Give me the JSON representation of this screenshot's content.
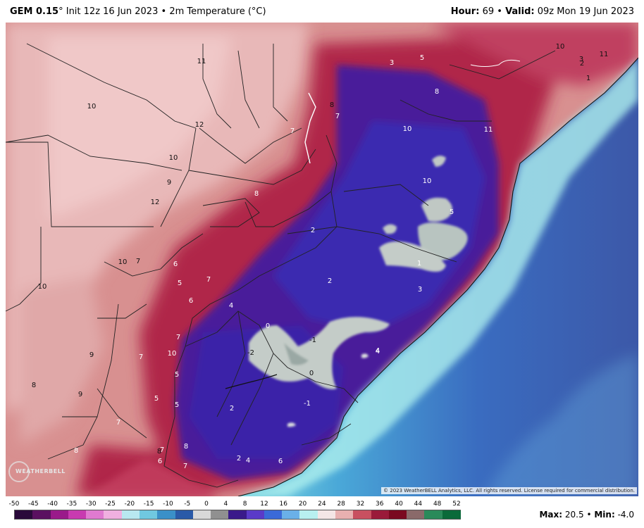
{
  "header": {
    "model": "GEM 0.15",
    "degree": "°",
    "init": "Init 12z 16 Jun 2023",
    "separator": "•",
    "field": "2m Temperature (°C)",
    "hour_label": "Hour:",
    "hour_value": "69",
    "valid_label": "Valid:",
    "valid_value": "09z Mon 19 Jun 2023"
  },
  "map": {
    "labels": [
      {
        "t": "11"
      },
      {
        "t": "10"
      },
      {
        "t": "12"
      },
      {
        "t": "10"
      },
      {
        "t": "9"
      },
      {
        "t": "12"
      },
      {
        "t": "10"
      },
      {
        "t": "9"
      },
      {
        "t": "10"
      },
      {
        "t": "7"
      },
      {
        "t": "8"
      },
      {
        "t": "8"
      },
      {
        "t": "7"
      },
      {
        "t": "8"
      },
      {
        "t": "7"
      },
      {
        "t": "3"
      },
      {
        "t": "5"
      },
      {
        "t": "8"
      },
      {
        "t": "10"
      },
      {
        "t": "11"
      },
      {
        "t": "10"
      },
      {
        "t": "11"
      },
      {
        "t": "2"
      },
      {
        "t": "3"
      },
      {
        "t": "1"
      },
      {
        "t": "10"
      },
      {
        "t": "5"
      },
      {
        "t": "2"
      },
      {
        "t": "1"
      },
      {
        "t": "3"
      },
      {
        "t": "2"
      },
      {
        "t": "6"
      },
      {
        "t": "5"
      },
      {
        "t": "7"
      },
      {
        "t": "6"
      },
      {
        "t": "4"
      },
      {
        "t": "0"
      },
      {
        "t": "-1"
      },
      {
        "t": "-2"
      },
      {
        "t": "4"
      },
      {
        "t": "0"
      },
      {
        "t": "7"
      },
      {
        "t": "10"
      },
      {
        "t": "7"
      },
      {
        "t": "5"
      },
      {
        "t": "5"
      },
      {
        "t": "5"
      },
      {
        "t": "2"
      },
      {
        "t": "-1"
      },
      {
        "t": "8"
      },
      {
        "t": "9"
      },
      {
        "t": "7"
      },
      {
        "t": "7"
      },
      {
        "t": "8"
      },
      {
        "t": "6"
      },
      {
        "t": "7"
      },
      {
        "t": "2"
      },
      {
        "t": "4"
      },
      {
        "t": "6"
      },
      {
        "t": "8"
      },
      {
        "t": "4"
      }
    ]
  },
  "copyright": "© 2023 WeatherBELL Analytics, LLC. All rights reserved. License required for commercial distribution.",
  "logo_text": "WEATHERBELL",
  "scale": {
    "ticks": [
      "-50",
      "-45",
      "-40",
      "-35",
      "-30",
      "-25",
      "-20",
      "-15",
      "-10",
      "-5",
      "0",
      "4",
      "8",
      "12",
      "16",
      "20",
      "24",
      "28",
      "32",
      "36",
      "40",
      "44",
      "48",
      "52"
    ],
    "colors": [
      "#2a0a3a",
      "#5a1060",
      "#9a1a8a",
      "#c83ab0",
      "#e07ad0",
      "#f0b0e0",
      "#b8e8f0",
      "#70c8e0",
      "#3a90c8",
      "#2a5aa8",
      "#d8d8d8",
      "#909090",
      "#3a1a8a",
      "#5a3ac8",
      "#3a6ad8",
      "#6ab0e8",
      "#b8f0f0",
      "#f4e6e6",
      "#e8b0b0",
      "#c85060",
      "#9a1a3a",
      "#7a0a20",
      "#8a6a6a",
      "#2a8a5a",
      "#0a6a3a"
    ]
  },
  "stats": {
    "max_label": "Max:",
    "max_value": "20.5",
    "sep": "•",
    "min_label": "Min:",
    "min_value": "-4.0"
  }
}
